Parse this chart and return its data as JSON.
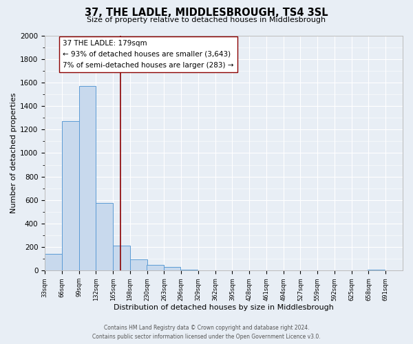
{
  "title": "37, THE LADLE, MIDDLESBROUGH, TS4 3SL",
  "subtitle": "Size of property relative to detached houses in Middlesbrough",
  "xlabel": "Distribution of detached houses by size in Middlesbrough",
  "ylabel": "Number of detached properties",
  "bar_edges": [
    33,
    66,
    99,
    132,
    165,
    198,
    230,
    263,
    296,
    329,
    362,
    395,
    428,
    461,
    494,
    527,
    559,
    592,
    625,
    658,
    691,
    724
  ],
  "bar_heights": [
    140,
    1270,
    1570,
    575,
    215,
    95,
    50,
    30,
    10,
    0,
    0,
    0,
    0,
    0,
    0,
    0,
    0,
    0,
    0,
    10,
    0
  ],
  "bar_color": "#c8d9ed",
  "bar_edge_color": "#5b9bd5",
  "property_value": 179,
  "vline_color": "#8b0000",
  "annotation_box_color": "#ffffff",
  "annotation_box_edge": "#8b0000",
  "annotation_line1": "37 THE LADLE: 179sqm",
  "annotation_line2": "← 93% of detached houses are smaller (3,643)",
  "annotation_line3": "7% of semi-detached houses are larger (283) →",
  "ylim": [
    0,
    2000
  ],
  "ytick_step": 200,
  "background_color": "#e8eef5",
  "plot_background": "#e8eef5",
  "footer_line1": "Contains HM Land Registry data © Crown copyright and database right 2024.",
  "footer_line2": "Contains public sector information licensed under the Open Government Licence v3.0.",
  "tick_labels": [
    "33sqm",
    "66sqm",
    "99sqm",
    "132sqm",
    "165sqm",
    "198sqm",
    "230sqm",
    "263sqm",
    "296sqm",
    "329sqm",
    "362sqm",
    "395sqm",
    "428sqm",
    "461sqm",
    "494sqm",
    "527sqm",
    "559sqm",
    "592sqm",
    "625sqm",
    "658sqm",
    "691sqm"
  ]
}
